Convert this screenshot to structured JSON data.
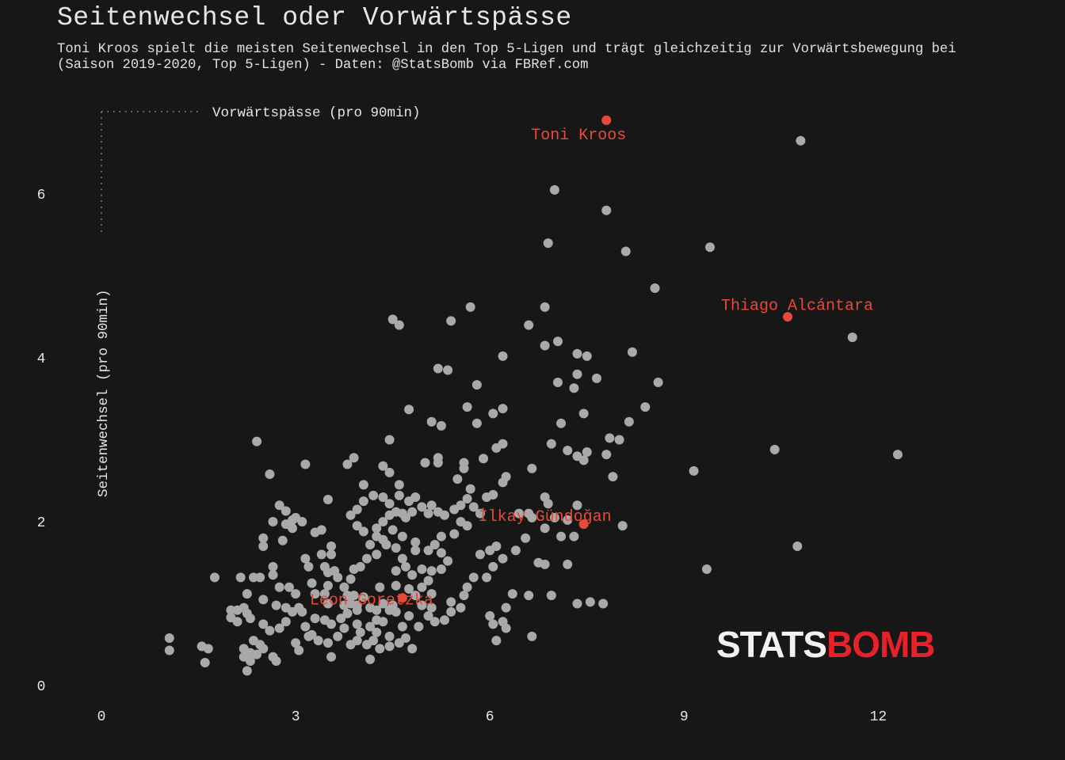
{
  "header": {
    "title": "Seitenwechsel oder Vorwärtspässe",
    "subtitle_line1": "Toni Kroos spielt die meisten Seitenwechsel in den Top 5-Ligen und trägt gleichzeitig zur Vorwärtsbewegung bei",
    "subtitle_line2": "(Saison 2019-2020, Top 5-Ligen) - Daten: @StatsBomb via FBRef.com"
  },
  "logo": {
    "part1": "STATS",
    "part2": "BOMB"
  },
  "colors": {
    "background": "#171717",
    "point": "#a9a9a9",
    "highlight": "#e84a3a",
    "logo_red": "#e8202a"
  },
  "chart_data": {
    "type": "scatter",
    "xlabel": "Vorwärtspässe (pro 90min)",
    "ylabel": "Seitenwechsel (pro 90min)",
    "xlim": [
      0,
      14
    ],
    "ylim": [
      0,
      7.1
    ],
    "xticks": [
      0,
      3,
      6,
      9,
      12
    ],
    "yticks": [
      0,
      2,
      4,
      6
    ],
    "grid": false,
    "highlighted": [
      {
        "name": "Toni Kroos",
        "x": 7.8,
        "y": 6.9
      },
      {
        "name": "Thiago Alcántara",
        "x": 10.6,
        "y": 4.5
      },
      {
        "name": "İlkay Gündoğan",
        "x": 7.45,
        "y": 1.97
      },
      {
        "name": "Leon Goretzka",
        "x": 4.65,
        "y": 1.07
      }
    ],
    "points": [
      [
        10.8,
        6.65
      ],
      [
        7.0,
        6.05
      ],
      [
        7.8,
        5.8
      ],
      [
        9.4,
        5.35
      ],
      [
        6.9,
        5.4
      ],
      [
        8.1,
        5.3
      ],
      [
        8.55,
        4.85
      ],
      [
        5.7,
        4.62
      ],
      [
        6.85,
        4.62
      ],
      [
        4.5,
        4.47
      ],
      [
        4.6,
        4.4
      ],
      [
        5.4,
        4.45
      ],
      [
        6.6,
        4.4
      ],
      [
        11.6,
        4.25
      ],
      [
        7.05,
        4.2
      ],
      [
        6.85,
        4.15
      ],
      [
        6.2,
        4.02
      ],
      [
        7.35,
        4.05
      ],
      [
        7.5,
        4.02
      ],
      [
        8.2,
        4.07
      ],
      [
        5.2,
        3.87
      ],
      [
        5.35,
        3.85
      ],
      [
        7.35,
        3.8
      ],
      [
        7.65,
        3.75
      ],
      [
        5.8,
        3.67
      ],
      [
        7.05,
        3.7
      ],
      [
        7.3,
        3.63
      ],
      [
        8.6,
        3.7
      ],
      [
        4.75,
        3.37
      ],
      [
        5.65,
        3.4
      ],
      [
        6.2,
        3.38
      ],
      [
        6.05,
        3.32
      ],
      [
        7.45,
        3.32
      ],
      [
        8.4,
        3.4
      ],
      [
        5.1,
        3.22
      ],
      [
        5.25,
        3.17
      ],
      [
        5.8,
        3.2
      ],
      [
        7.1,
        3.2
      ],
      [
        8.15,
        3.22
      ],
      [
        2.4,
        2.98
      ],
      [
        4.45,
        3.0
      ],
      [
        7.85,
        3.02
      ],
      [
        8.0,
        3.0
      ],
      [
        6.95,
        2.95
      ],
      [
        6.2,
        2.95
      ],
      [
        6.1,
        2.9
      ],
      [
        7.2,
        2.87
      ],
      [
        3.15,
        2.7
      ],
      [
        3.9,
        2.78
      ],
      [
        3.8,
        2.7
      ],
      [
        4.35,
        2.68
      ],
      [
        4.45,
        2.6
      ],
      [
        5.0,
        2.72
      ],
      [
        5.2,
        2.78
      ],
      [
        5.2,
        2.72
      ],
      [
        5.6,
        2.72
      ],
      [
        5.6,
        2.65
      ],
      [
        5.9,
        2.77
      ],
      [
        7.35,
        2.8
      ],
      [
        7.45,
        2.75
      ],
      [
        7.5,
        2.85
      ],
      [
        7.8,
        2.82
      ],
      [
        10.4,
        2.88
      ],
      [
        12.3,
        2.82
      ],
      [
        9.15,
        2.62
      ],
      [
        2.6,
        2.58
      ],
      [
        6.65,
        2.65
      ],
      [
        6.25,
        2.55
      ],
      [
        6.2,
        2.48
      ],
      [
        7.9,
        2.55
      ],
      [
        5.5,
        2.52
      ],
      [
        4.05,
        2.45
      ],
      [
        4.6,
        2.45
      ],
      [
        5.7,
        2.4
      ],
      [
        6.05,
        2.33
      ],
      [
        5.95,
        2.3
      ],
      [
        3.5,
        2.27
      ],
      [
        2.75,
        2.2
      ],
      [
        2.85,
        2.13
      ],
      [
        3.1,
        2.0
      ],
      [
        3.0,
        2.05
      ],
      [
        2.95,
        2.02
      ],
      [
        2.65,
        2.0
      ],
      [
        2.85,
        1.97
      ],
      [
        2.95,
        1.92
      ],
      [
        3.3,
        1.87
      ],
      [
        3.55,
        1.7
      ],
      [
        3.4,
        1.6
      ],
      [
        3.15,
        1.55
      ],
      [
        3.2,
        1.45
      ],
      [
        3.45,
        1.45
      ],
      [
        3.5,
        1.38
      ],
      [
        3.25,
        1.25
      ],
      [
        3.5,
        1.22
      ],
      [
        3.3,
        1.12
      ],
      [
        2.5,
        1.8
      ],
      [
        2.5,
        1.7
      ],
      [
        2.8,
        1.77
      ],
      [
        2.65,
        1.45
      ],
      [
        2.65,
        1.35
      ],
      [
        2.45,
        1.32
      ],
      [
        2.75,
        1.2
      ],
      [
        2.9,
        1.2
      ],
      [
        3.0,
        1.12
      ],
      [
        2.5,
        1.05
      ],
      [
        2.25,
        1.12
      ],
      [
        1.75,
        1.32
      ],
      [
        2.15,
        1.32
      ],
      [
        2.35,
        1.32
      ],
      [
        2.2,
        0.95
      ],
      [
        2.1,
        0.92
      ],
      [
        2.25,
        0.88
      ],
      [
        2.0,
        0.92
      ],
      [
        2.0,
        0.83
      ],
      [
        2.1,
        0.78
      ],
      [
        2.3,
        0.82
      ],
      [
        2.5,
        0.75
      ],
      [
        2.6,
        0.67
      ],
      [
        2.75,
        0.7
      ],
      [
        2.85,
        0.78
      ],
      [
        2.95,
        0.9
      ],
      [
        3.05,
        0.95
      ],
      [
        3.2,
        0.6
      ],
      [
        3.35,
        0.55
      ],
      [
        3.5,
        0.52
      ],
      [
        2.35,
        0.55
      ],
      [
        2.45,
        0.5
      ],
      [
        2.5,
        0.45
      ],
      [
        2.2,
        0.45
      ],
      [
        2.3,
        0.4
      ],
      [
        2.4,
        0.38
      ],
      [
        2.2,
        0.35
      ],
      [
        2.3,
        0.3
      ],
      [
        2.65,
        0.35
      ],
      [
        2.7,
        0.3
      ],
      [
        2.25,
        0.18
      ],
      [
        1.05,
        0.58
      ],
      [
        1.05,
        0.43
      ],
      [
        1.55,
        0.48
      ],
      [
        1.65,
        0.45
      ],
      [
        1.6,
        0.28
      ],
      [
        3.0,
        0.52
      ],
      [
        3.05,
        0.43
      ],
      [
        3.25,
        0.62
      ],
      [
        3.45,
        0.8
      ],
      [
        3.55,
        0.75
      ],
      [
        3.7,
        0.82
      ],
      [
        3.75,
        0.7
      ],
      [
        3.55,
        0.35
      ],
      [
        3.75,
        0.98
      ],
      [
        3.8,
        0.88
      ],
      [
        3.9,
        1.1
      ],
      [
        3.95,
        0.98
      ],
      [
        4.05,
        1.08
      ],
      [
        4.15,
        0.95
      ],
      [
        4.25,
        0.92
      ],
      [
        4.35,
        1.0
      ],
      [
        4.5,
        0.98
      ],
      [
        4.45,
        0.92
      ],
      [
        4.25,
        0.8
      ],
      [
        4.15,
        0.72
      ],
      [
        4.0,
        0.65
      ],
      [
        3.95,
        0.55
      ],
      [
        3.85,
        0.5
      ],
      [
        4.1,
        0.5
      ],
      [
        4.2,
        0.55
      ],
      [
        4.3,
        0.45
      ],
      [
        4.15,
        0.32
      ],
      [
        4.45,
        0.6
      ],
      [
        4.7,
        0.58
      ],
      [
        4.8,
        0.45
      ],
      [
        4.9,
        0.72
      ],
      [
        5.05,
        0.85
      ],
      [
        5.1,
        0.95
      ],
      [
        5.15,
        0.78
      ],
      [
        5.3,
        0.8
      ],
      [
        5.4,
        0.9
      ],
      [
        5.4,
        1.02
      ],
      [
        5.55,
        0.95
      ],
      [
        5.6,
        1.1
      ],
      [
        5.65,
        1.2
      ],
      [
        5.75,
        1.32
      ],
      [
        5.95,
        1.32
      ],
      [
        6.05,
        1.45
      ],
      [
        5.85,
        1.6
      ],
      [
        6.0,
        1.65
      ],
      [
        6.1,
        1.7
      ],
      [
        6.2,
        1.55
      ],
      [
        6.4,
        1.65
      ],
      [
        6.55,
        1.8
      ],
      [
        6.65,
        2.05
      ],
      [
        6.45,
        2.1
      ],
      [
        6.6,
        2.1
      ],
      [
        6.85,
        2.3
      ],
      [
        6.9,
        2.22
      ],
      [
        7.0,
        2.05
      ],
      [
        7.2,
        2.02
      ],
      [
        7.35,
        2.2
      ],
      [
        7.3,
        1.82
      ],
      [
        7.1,
        1.82
      ],
      [
        6.85,
        1.92
      ],
      [
        6.75,
        1.5
      ],
      [
        6.85,
        1.48
      ],
      [
        7.2,
        1.48
      ],
      [
        6.0,
        0.85
      ],
      [
        6.05,
        0.75
      ],
      [
        6.25,
        0.95
      ],
      [
        6.35,
        1.12
      ],
      [
        6.6,
        1.1
      ],
      [
        6.95,
        1.1
      ],
      [
        7.35,
        1.0
      ],
      [
        7.55,
        1.02
      ],
      [
        7.75,
        1.0
      ],
      [
        6.2,
        0.78
      ],
      [
        6.25,
        0.7
      ],
      [
        6.1,
        0.55
      ],
      [
        6.65,
        0.6
      ],
      [
        8.05,
        1.95
      ],
      [
        9.35,
        1.42
      ],
      [
        10.75,
        1.7
      ],
      [
        4.95,
        1.42
      ],
      [
        5.1,
        1.4
      ],
      [
        5.25,
        1.42
      ],
      [
        4.8,
        1.35
      ],
      [
        4.55,
        1.4
      ],
      [
        4.7,
        1.45
      ],
      [
        4.65,
        1.55
      ],
      [
        4.85,
        1.65
      ],
      [
        4.55,
        1.68
      ],
      [
        4.35,
        1.78
      ],
      [
        4.25,
        1.6
      ],
      [
        4.1,
        1.55
      ],
      [
        4.0,
        1.45
      ],
      [
        3.9,
        1.42
      ],
      [
        3.85,
        1.3
      ],
      [
        3.75,
        1.2
      ],
      [
        3.8,
        1.1
      ],
      [
        4.25,
        1.92
      ],
      [
        4.35,
        2.0
      ],
      [
        4.45,
        2.08
      ],
      [
        4.55,
        2.12
      ],
      [
        4.65,
        2.1
      ],
      [
        4.7,
        2.05
      ],
      [
        4.8,
        2.12
      ],
      [
        4.95,
        2.18
      ],
      [
        5.1,
        2.2
      ],
      [
        5.05,
        2.1
      ],
      [
        5.2,
        2.12
      ],
      [
        5.3,
        2.08
      ],
      [
        5.45,
        2.15
      ],
      [
        5.55,
        2.2
      ],
      [
        5.65,
        2.28
      ],
      [
        5.75,
        2.18
      ],
      [
        5.85,
        2.1
      ],
      [
        5.55,
        2.0
      ],
      [
        5.65,
        1.95
      ],
      [
        5.45,
        1.85
      ],
      [
        5.25,
        1.82
      ],
      [
        5.15,
        1.72
      ],
      [
        5.25,
        1.62
      ],
      [
        5.35,
        1.52
      ],
      [
        5.05,
        1.65
      ],
      [
        4.85,
        1.75
      ],
      [
        4.65,
        1.82
      ],
      [
        4.5,
        1.9
      ],
      [
        4.4,
        1.72
      ],
      [
        4.25,
        1.82
      ],
      [
        4.15,
        1.72
      ],
      [
        4.05,
        1.88
      ],
      [
        3.95,
        1.95
      ],
      [
        3.85,
        2.08
      ],
      [
        3.95,
        2.15
      ],
      [
        4.05,
        2.25
      ],
      [
        4.2,
        2.32
      ],
      [
        4.35,
        2.3
      ],
      [
        4.45,
        2.22
      ],
      [
        4.6,
        2.32
      ],
      [
        4.75,
        2.25
      ],
      [
        4.85,
        2.3
      ],
      [
        3.4,
        1.9
      ],
      [
        3.55,
        1.6
      ],
      [
        3.6,
        1.4
      ],
      [
        3.65,
        1.32
      ],
      [
        3.85,
        1.0
      ],
      [
        3.95,
        0.92
      ],
      [
        4.3,
        1.2
      ],
      [
        4.55,
        1.22
      ],
      [
        4.75,
        1.18
      ],
      [
        4.85,
        1.1
      ],
      [
        4.95,
        1.2
      ],
      [
        5.05,
        1.28
      ],
      [
        5.1,
        1.12
      ],
      [
        4.95,
        0.98
      ],
      [
        4.75,
        0.85
      ],
      [
        4.65,
        0.72
      ],
      [
        4.55,
        0.9
      ],
      [
        4.35,
        0.78
      ],
      [
        4.25,
        0.65
      ],
      [
        4.45,
        0.48
      ],
      [
        4.6,
        0.52
      ],
      [
        3.95,
        0.75
      ],
      [
        3.65,
        0.6
      ],
      [
        3.3,
        0.82
      ],
      [
        3.15,
        0.72
      ],
      [
        2.7,
        0.98
      ],
      [
        2.85,
        0.95
      ],
      [
        3.1,
        0.9
      ],
      [
        3.5,
        1.0
      ],
      [
        3.45,
        1.12
      ]
    ]
  }
}
